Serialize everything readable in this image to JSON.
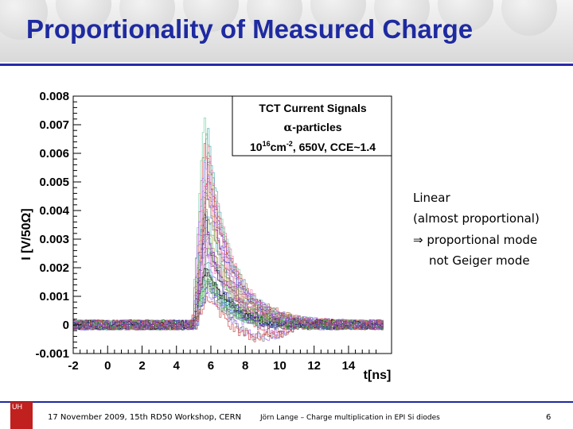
{
  "slide": {
    "title": "Proportionality of Measured Charge",
    "annotations": {
      "line1": "Linear",
      "line2": "(almost proportional)",
      "line3_arrow": "⇒",
      "line3": "proportional mode",
      "line4": "not Geiger mode"
    },
    "footer": {
      "logo_text": "UH",
      "left": "17 November 2009,  15th RD50 Workshop, CERN",
      "center": "Jörn Lange – Charge multiplication in EPI Si diodes",
      "page": "6"
    }
  },
  "colors": {
    "title": "#1e2aa0",
    "rule": "#2a2aa8",
    "logo": "#c0201e",
    "trace_palette": [
      "#cc3333",
      "#33aa33",
      "#3333cc",
      "#aa33aa",
      "#33aaaa",
      "#999933",
      "#666666",
      "#ff6699",
      "#66cc99",
      "#9966ff",
      "#996633",
      "#000000"
    ]
  },
  "chart_data": {
    "type": "line",
    "title": "TCT Current Signals",
    "legend": {
      "line1": "TCT Current Signals",
      "line2_greek": "α",
      "line2": "-particles",
      "line3_base": "10",
      "line3_exp": "16",
      "line3_rest": "cm",
      "line3_exp2": "-2",
      "line3_tail": ", 650V, CCE~1.4"
    },
    "xlabel": "t[ns]",
    "ylabel": "I [V/50Ω]",
    "xlim": [
      -2,
      16.5
    ],
    "ylim": [
      -0.001,
      0.008
    ],
    "x_ticks": [
      -2,
      0,
      2,
      4,
      6,
      8,
      10,
      12,
      14
    ],
    "x_tick_labels": [
      "-2",
      "0",
      "2",
      "4",
      "6",
      "8",
      "10",
      "12",
      "14"
    ],
    "y_ticks": [
      -0.001,
      0,
      0.001,
      0.002,
      0.003,
      0.004,
      0.005,
      0.006,
      0.007,
      0.008
    ],
    "y_tick_labels": [
      "-0.001",
      "0",
      "0.001",
      "0.002",
      "0.003",
      "0.004",
      "0.005",
      "0.006",
      "0.007",
      "0.008"
    ],
    "pulse": {
      "onset_t": 5.0,
      "peak_t": 5.7,
      "decay_end_t": 9.0,
      "amplitude_range": [
        0.0009,
        0.0075
      ],
      "n_traces": 40
    }
  }
}
